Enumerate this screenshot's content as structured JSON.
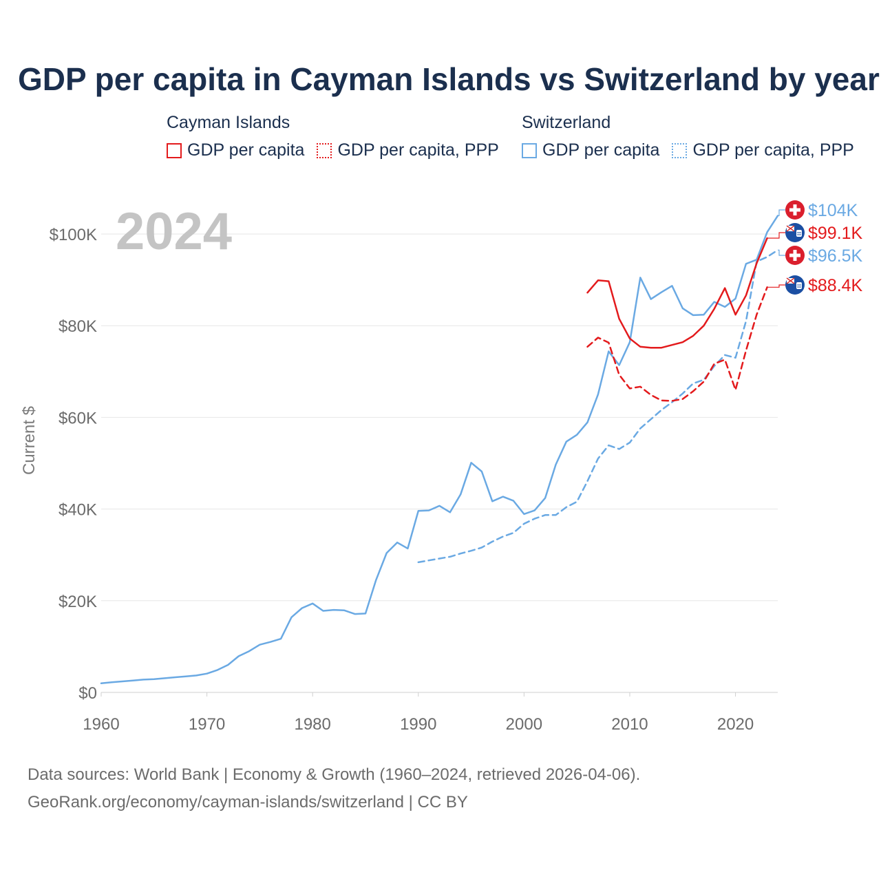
{
  "title": "GDP per capita in Cayman Islands vs Switzerland by year",
  "legend": {
    "groups": [
      {
        "name": "Cayman Islands",
        "items": [
          {
            "label": "GDP per capita",
            "style": "solid",
            "color": "#e31a1c"
          },
          {
            "label": "GDP per capita, PPP",
            "style": "dotted",
            "color": "#e31a1c"
          }
        ]
      },
      {
        "name": "Switzerland",
        "items": [
          {
            "label": "GDP per capita",
            "style": "solid",
            "color": "#6aa9e3"
          },
          {
            "label": "GDP per capita, PPP",
            "style": "dotted",
            "color": "#6aa9e3"
          }
        ]
      }
    ]
  },
  "footer": {
    "line1": "Data sources: World Bank | Economy & Growth (1960–2024, retrieved 2026-04-06).",
    "line2": "GeoRank.org/economy/cayman-islands/switzerland | CC BY"
  },
  "chart_data": {
    "type": "line",
    "title": "GDP per capita in Cayman Islands vs Switzerland by year",
    "year_watermark": "2024",
    "xlabel": "",
    "ylabel": "Current $",
    "xlim": [
      1960,
      2024
    ],
    "ylim": [
      0,
      110000
    ],
    "x_ticks": [
      1960,
      1970,
      1980,
      1990,
      2000,
      2010,
      2020
    ],
    "x_tick_labels": [
      "1960",
      "1970",
      "1980",
      "1990",
      "2000",
      "2010",
      "2020"
    ],
    "y_ticks": [
      0,
      20000,
      40000,
      60000,
      80000,
      100000
    ],
    "y_tick_labels": [
      "$0",
      "$20K",
      "$40K",
      "$60K",
      "$80K",
      "$100K"
    ],
    "grid": true,
    "series": [
      {
        "name": "Switzerland GDP per capita",
        "country": "Switzerland",
        "color": "#6aa9e3",
        "dash": "solid",
        "end_label": "$104K",
        "flag": "switzerland-flag",
        "points": [
          [
            1960,
            2000
          ],
          [
            1961,
            2200
          ],
          [
            1962,
            2400
          ],
          [
            1963,
            2600
          ],
          [
            1964,
            2800
          ],
          [
            1965,
            2900
          ],
          [
            1966,
            3100
          ],
          [
            1967,
            3300
          ],
          [
            1968,
            3500
          ],
          [
            1969,
            3700
          ],
          [
            1970,
            4100
          ],
          [
            1971,
            4900
          ],
          [
            1972,
            6000
          ],
          [
            1973,
            7900
          ],
          [
            1974,
            9000
          ],
          [
            1975,
            10400
          ],
          [
            1976,
            11000
          ],
          [
            1977,
            11700
          ],
          [
            1978,
            16400
          ],
          [
            1979,
            18400
          ],
          [
            1980,
            19400
          ],
          [
            1981,
            17800
          ],
          [
            1982,
            18000
          ],
          [
            1983,
            17900
          ],
          [
            1984,
            17100
          ],
          [
            1985,
            17200
          ],
          [
            1986,
            24500
          ],
          [
            1987,
            30400
          ],
          [
            1988,
            32700
          ],
          [
            1989,
            31400
          ],
          [
            1990,
            39600
          ],
          [
            1991,
            39700
          ],
          [
            1992,
            40700
          ],
          [
            1993,
            39300
          ],
          [
            1994,
            43200
          ],
          [
            1995,
            50100
          ],
          [
            1996,
            48200
          ],
          [
            1997,
            41700
          ],
          [
            1998,
            42700
          ],
          [
            1999,
            41800
          ],
          [
            2000,
            38900
          ],
          [
            2001,
            39700
          ],
          [
            2002,
            42400
          ],
          [
            2003,
            49700
          ],
          [
            2004,
            54700
          ],
          [
            2005,
            56200
          ],
          [
            2006,
            58900
          ],
          [
            2007,
            65000
          ],
          [
            2008,
            74400
          ],
          [
            2009,
            71400
          ],
          [
            2010,
            76400
          ],
          [
            2011,
            90500
          ],
          [
            2012,
            85800
          ],
          [
            2013,
            87300
          ],
          [
            2014,
            88700
          ],
          [
            2015,
            83800
          ],
          [
            2016,
            82300
          ],
          [
            2017,
            82400
          ],
          [
            2018,
            85200
          ],
          [
            2019,
            84100
          ],
          [
            2020,
            85900
          ],
          [
            2021,
            93500
          ],
          [
            2022,
            94400
          ],
          [
            2023,
            100400
          ],
          [
            2024,
            104000
          ]
        ]
      },
      {
        "name": "Switzerland GDP per capita, PPP",
        "country": "Switzerland",
        "color": "#6aa9e3",
        "dash": "dashed",
        "end_label": "$96.5K",
        "flag": "switzerland-flag",
        "points": [
          [
            1990,
            28400
          ],
          [
            1991,
            28800
          ],
          [
            1992,
            29200
          ],
          [
            1993,
            29600
          ],
          [
            1994,
            30300
          ],
          [
            1995,
            30900
          ],
          [
            1996,
            31600
          ],
          [
            1997,
            32900
          ],
          [
            1998,
            34000
          ],
          [
            1999,
            34800
          ],
          [
            2000,
            36800
          ],
          [
            2001,
            37900
          ],
          [
            2002,
            38700
          ],
          [
            2003,
            38700
          ],
          [
            2004,
            40400
          ],
          [
            2005,
            41600
          ],
          [
            2006,
            46100
          ],
          [
            2007,
            51000
          ],
          [
            2008,
            53900
          ],
          [
            2009,
            53100
          ],
          [
            2010,
            54500
          ],
          [
            2011,
            57600
          ],
          [
            2012,
            59600
          ],
          [
            2013,
            61600
          ],
          [
            2014,
            63300
          ],
          [
            2015,
            65200
          ],
          [
            2016,
            67400
          ],
          [
            2017,
            68200
          ],
          [
            2018,
            71200
          ],
          [
            2019,
            73600
          ],
          [
            2020,
            73000
          ],
          [
            2021,
            81000
          ],
          [
            2022,
            94000
          ],
          [
            2023,
            95000
          ],
          [
            2024,
            96500
          ]
        ]
      },
      {
        "name": "Cayman Islands GDP per capita",
        "country": "Cayman Islands",
        "color": "#e31a1c",
        "dash": "solid",
        "end_label": "$99.1K",
        "flag": "cayman-islands-flag",
        "points": [
          [
            2006,
            87200
          ],
          [
            2007,
            89900
          ],
          [
            2008,
            89700
          ],
          [
            2009,
            81500
          ],
          [
            2010,
            77200
          ],
          [
            2011,
            75400
          ],
          [
            2012,
            75200
          ],
          [
            2013,
            75200
          ],
          [
            2014,
            75800
          ],
          [
            2015,
            76400
          ],
          [
            2016,
            77800
          ],
          [
            2017,
            80000
          ],
          [
            2018,
            83700
          ],
          [
            2019,
            88200
          ],
          [
            2020,
            82400
          ],
          [
            2021,
            86600
          ],
          [
            2022,
            93600
          ],
          [
            2023,
            99100
          ]
        ]
      },
      {
        "name": "Cayman Islands GDP per capita, PPP",
        "country": "Cayman Islands",
        "color": "#e31a1c",
        "dash": "dashed",
        "end_label": "$88.4K",
        "flag": "cayman-islands-flag",
        "points": [
          [
            2006,
            75400
          ],
          [
            2007,
            77400
          ],
          [
            2008,
            76300
          ],
          [
            2009,
            69300
          ],
          [
            2010,
            66300
          ],
          [
            2011,
            66700
          ],
          [
            2012,
            64900
          ],
          [
            2013,
            63700
          ],
          [
            2014,
            63600
          ],
          [
            2015,
            64000
          ],
          [
            2016,
            65700
          ],
          [
            2017,
            67800
          ],
          [
            2018,
            71700
          ],
          [
            2019,
            72600
          ],
          [
            2020,
            66000
          ],
          [
            2021,
            74600
          ],
          [
            2022,
            82400
          ],
          [
            2023,
            88400
          ]
        ]
      }
    ]
  }
}
